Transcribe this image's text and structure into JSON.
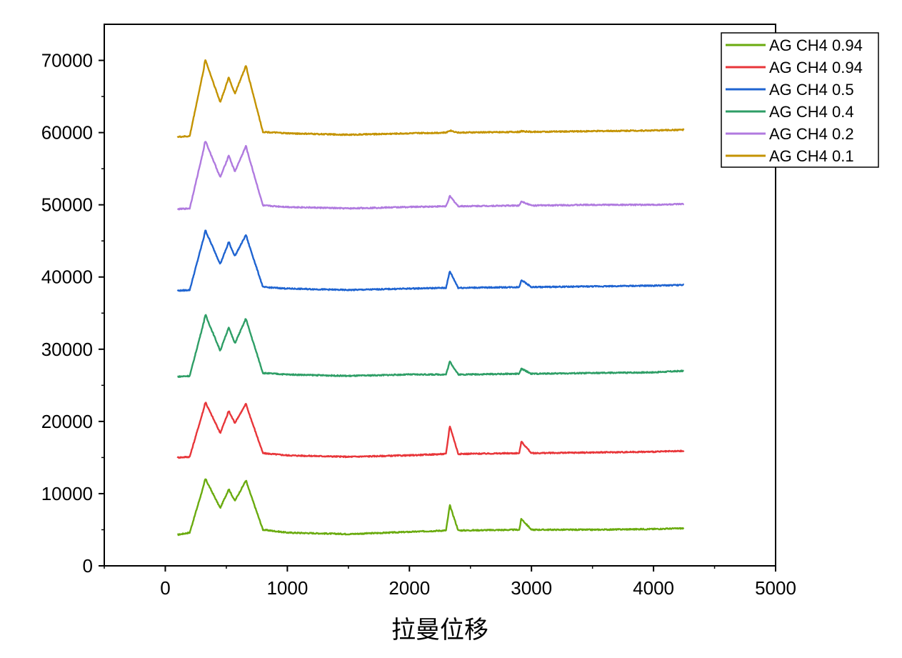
{
  "chart_data": {
    "type": "line",
    "title": "",
    "xlabel": "拉曼位移",
    "ylabel": "",
    "xlim": [
      -500,
      5000
    ],
    "ylim": [
      0,
      75000
    ],
    "x_ticks": [
      0,
      1000,
      2000,
      3000,
      4000,
      5000
    ],
    "y_ticks": [
      0,
      10000,
      20000,
      30000,
      40000,
      50000,
      60000,
      70000
    ],
    "x_tick_labels": [
      "0",
      "1000",
      "2000",
      "3000",
      "4000",
      "5000"
    ],
    "y_tick_labels": [
      "0",
      "10000",
      "20000",
      "30000",
      "40000",
      "50000",
      "60000",
      "70000"
    ],
    "grid": false,
    "legend_position": "top-right",
    "peak_positions": [
      330,
      450,
      520,
      570,
      660,
      2331,
      2917
    ],
    "series": [
      {
        "name": "AG CH4 0.94",
        "color": "#6aab0f",
        "baseline": 4400,
        "points": [
          [
            100,
            4300
          ],
          [
            200,
            4600
          ],
          [
            330,
            12000
          ],
          [
            450,
            8000
          ],
          [
            520,
            10600
          ],
          [
            570,
            9000
          ],
          [
            660,
            11800
          ],
          [
            800,
            5000
          ],
          [
            1000,
            4600
          ],
          [
            1500,
            4400
          ],
          [
            2000,
            4700
          ],
          [
            2300,
            4900
          ],
          [
            2331,
            8400
          ],
          [
            2400,
            4900
          ],
          [
            2900,
            5000
          ],
          [
            2917,
            6500
          ],
          [
            3000,
            5000
          ],
          [
            3500,
            5000
          ],
          [
            4000,
            5100
          ],
          [
            4250,
            5200
          ]
        ]
      },
      {
        "name": "AG CH4 0.94",
        "color": "#e8363a",
        "baseline": 15000,
        "points": [
          [
            100,
            15000
          ],
          [
            200,
            15100
          ],
          [
            330,
            22600
          ],
          [
            450,
            18400
          ],
          [
            520,
            21400
          ],
          [
            570,
            19800
          ],
          [
            660,
            22400
          ],
          [
            800,
            15600
          ],
          [
            1000,
            15300
          ],
          [
            1500,
            15100
          ],
          [
            2000,
            15300
          ],
          [
            2300,
            15500
          ],
          [
            2331,
            19400
          ],
          [
            2400,
            15500
          ],
          [
            2900,
            15600
          ],
          [
            2917,
            17200
          ],
          [
            3000,
            15600
          ],
          [
            3500,
            15700
          ],
          [
            4000,
            15800
          ],
          [
            4250,
            15900
          ]
        ]
      },
      {
        "name": "AG CH4 0.5",
        "color": "#1f64d1",
        "baseline": 38000,
        "points": [
          [
            100,
            38100
          ],
          [
            200,
            38200
          ],
          [
            330,
            46400
          ],
          [
            450,
            41800
          ],
          [
            520,
            44800
          ],
          [
            570,
            42900
          ],
          [
            660,
            45800
          ],
          [
            800,
            38600
          ],
          [
            1000,
            38400
          ],
          [
            1500,
            38200
          ],
          [
            2000,
            38400
          ],
          [
            2300,
            38500
          ],
          [
            2331,
            40800
          ],
          [
            2400,
            38500
          ],
          [
            2900,
            38600
          ],
          [
            2917,
            39600
          ],
          [
            3000,
            38600
          ],
          [
            3500,
            38700
          ],
          [
            4000,
            38800
          ],
          [
            4250,
            38900
          ]
        ]
      },
      {
        "name": "AG CH4 0.4",
        "color": "#2e9e66",
        "baseline": 26200,
        "points": [
          [
            100,
            26200
          ],
          [
            200,
            26300
          ],
          [
            330,
            34700
          ],
          [
            450,
            29800
          ],
          [
            520,
            33000
          ],
          [
            570,
            30800
          ],
          [
            660,
            34200
          ],
          [
            800,
            26700
          ],
          [
            1000,
            26500
          ],
          [
            1500,
            26300
          ],
          [
            2000,
            26500
          ],
          [
            2300,
            26500
          ],
          [
            2331,
            28300
          ],
          [
            2400,
            26500
          ],
          [
            2900,
            26600
          ],
          [
            2917,
            27300
          ],
          [
            3000,
            26600
          ],
          [
            3500,
            26700
          ],
          [
            4000,
            26800
          ],
          [
            4250,
            27000
          ]
        ]
      },
      {
        "name": "AG CH4 0.2",
        "color": "#b07adf",
        "baseline": 49400,
        "points": [
          [
            100,
            49400
          ],
          [
            200,
            49500
          ],
          [
            330,
            58800
          ],
          [
            450,
            53800
          ],
          [
            520,
            56800
          ],
          [
            570,
            54600
          ],
          [
            660,
            58100
          ],
          [
            800,
            49900
          ],
          [
            1000,
            49700
          ],
          [
            1500,
            49500
          ],
          [
            2000,
            49700
          ],
          [
            2300,
            49800
          ],
          [
            2331,
            51200
          ],
          [
            2400,
            49800
          ],
          [
            2900,
            49900
          ],
          [
            2917,
            50500
          ],
          [
            3000,
            49900
          ],
          [
            3500,
            50000
          ],
          [
            4000,
            50000
          ],
          [
            4250,
            50100
          ]
        ]
      },
      {
        "name": "AG CH4 0.1",
        "color": "#c49300",
        "baseline": 59400,
        "points": [
          [
            100,
            59400
          ],
          [
            200,
            59500
          ],
          [
            330,
            70000
          ],
          [
            450,
            64200
          ],
          [
            520,
            67600
          ],
          [
            570,
            65400
          ],
          [
            660,
            69200
          ],
          [
            800,
            60100
          ],
          [
            1000,
            59900
          ],
          [
            1500,
            59700
          ],
          [
            2000,
            59900
          ],
          [
            2300,
            60000
          ],
          [
            2331,
            60300
          ],
          [
            2400,
            60000
          ],
          [
            2900,
            60100
          ],
          [
            2917,
            60200
          ],
          [
            3000,
            60100
          ],
          [
            3500,
            60200
          ],
          [
            4000,
            60300
          ],
          [
            4250,
            60400
          ]
        ]
      }
    ]
  }
}
